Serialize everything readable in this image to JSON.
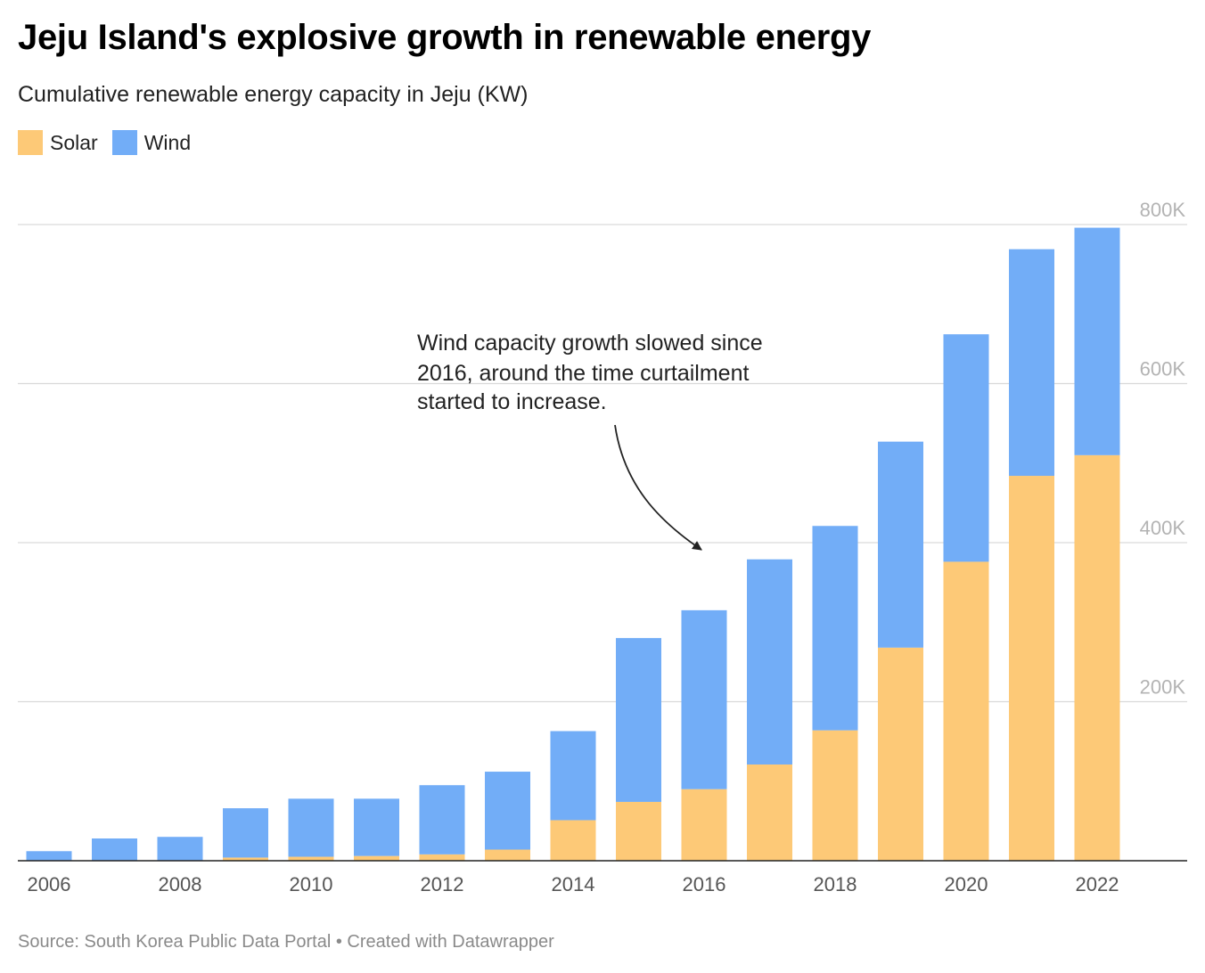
{
  "title": "Jeju Island's explosive growth in renewable energy",
  "subtitle": "Cumulative renewable energy capacity in Jeju (KW)",
  "footer": "Source: South Korea Public Data Portal • Created with Datawrapper",
  "colors": {
    "solar": "#fdc977",
    "wind": "#72adf7",
    "grid": "#d9d9d9",
    "axis": "#222222",
    "ytick": "#b3b3b3",
    "xtick": "#555555"
  },
  "legend": [
    {
      "label": "Solar",
      "color": "#fdc977"
    },
    {
      "label": "Wind",
      "color": "#72adf7"
    }
  ],
  "annotation": {
    "lines": [
      "Wind capacity growth slowed since",
      "2016, around the time curtailment",
      "started to increase."
    ]
  },
  "chart_data": {
    "type": "bar",
    "stacked": true,
    "categories": [
      "2006",
      "2007",
      "2008",
      "2009",
      "2010",
      "2011",
      "2012",
      "2013",
      "2014",
      "2015",
      "2016",
      "2017",
      "2018",
      "2019",
      "2020",
      "2021",
      "2022"
    ],
    "series": [
      {
        "name": "Solar",
        "color": "#fdc977",
        "values": [
          0,
          0,
          0,
          4000,
          5000,
          6000,
          8000,
          14000,
          51000,
          74000,
          90000,
          121000,
          164000,
          268000,
          376000,
          484000,
          510000
        ]
      },
      {
        "name": "Wind",
        "color": "#72adf7",
        "values": [
          12000,
          28000,
          30000,
          62000,
          73000,
          72000,
          87000,
          98000,
          112000,
          206000,
          225000,
          258000,
          257000,
          259000,
          286000,
          285000,
          286000
        ]
      }
    ],
    "ylim": [
      0,
      800000
    ],
    "yticks": [
      "200K",
      "400K",
      "600K",
      "800K"
    ],
    "ytick_values": [
      200000,
      400000,
      600000,
      800000
    ],
    "xtick_labels": [
      "2006",
      "2008",
      "2010",
      "2012",
      "2014",
      "2016",
      "2018",
      "2020",
      "2022"
    ],
    "xlabel": "",
    "ylabel": "",
    "grid": true,
    "yaxis_side": "right",
    "legend_position": "top-left"
  }
}
